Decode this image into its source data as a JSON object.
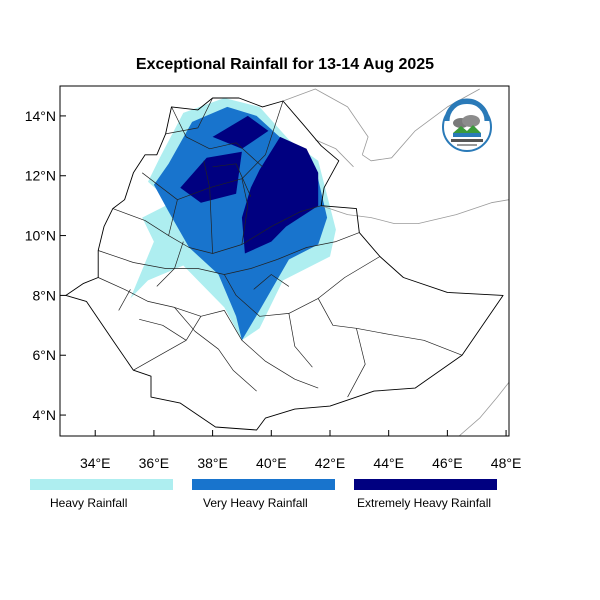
{
  "title": "Exceptional Rainfall for 13-14 Aug 2025",
  "axes": {
    "lon_ticks": [
      {
        "value": 34,
        "label": "34°E"
      },
      {
        "value": 36,
        "label": "36°E"
      },
      {
        "value": 38,
        "label": "38°E"
      },
      {
        "value": 40,
        "label": "40°E"
      },
      {
        "value": 42,
        "label": "42°E"
      },
      {
        "value": 44,
        "label": "44°E"
      },
      {
        "value": 46,
        "label": "46°E"
      },
      {
        "value": 48,
        "label": "48°E"
      }
    ],
    "lat_ticks": [
      {
        "value": 14,
        "label": "14°N"
      },
      {
        "value": 12,
        "label": "12°N"
      },
      {
        "value": 10,
        "label": "10°N"
      },
      {
        "value": 8,
        "label": "8°N"
      },
      {
        "value": 6,
        "label": "6°N"
      },
      {
        "value": 4,
        "label": "4°N"
      }
    ],
    "lon_range": [
      32.8,
      48.1
    ],
    "lat_range": [
      3.3,
      15.0
    ]
  },
  "legend": [
    {
      "label": "Heavy Rainfall",
      "color": "#aeeef0"
    },
    {
      "label": "Very Heavy Rainfall",
      "color": "#1874cd"
    },
    {
      "label": "Extremely Heavy Rainfall",
      "color": "#000080"
    }
  ],
  "logo": {
    "icon": "meteorology-institute-logo"
  },
  "rainfall_areas": [
    {
      "level": "heavy",
      "points": [
        [
          36.2,
          12.6
        ],
        [
          37.0,
          14.1
        ],
        [
          38.4,
          14.6
        ],
        [
          39.6,
          14.3
        ],
        [
          40.6,
          13.2
        ],
        [
          41.6,
          12.5
        ],
        [
          42.2,
          10.2
        ],
        [
          42.0,
          9.3
        ],
        [
          40.4,
          8.5
        ],
        [
          39.6,
          6.9
        ],
        [
          39.0,
          6.5
        ],
        [
          38.4,
          7.6
        ],
        [
          37.0,
          9.0
        ],
        [
          35.8,
          8.5
        ],
        [
          35.2,
          7.9
        ],
        [
          36.0,
          9.8
        ],
        [
          35.6,
          10.6
        ],
        [
          36.6,
          11.1
        ],
        [
          35.8,
          11.8
        ]
      ]
    },
    {
      "level": "very_heavy",
      "points": [
        [
          36.5,
          12.4
        ],
        [
          37.3,
          13.8
        ],
        [
          38.5,
          14.3
        ],
        [
          39.5,
          14.0
        ],
        [
          40.5,
          13.1
        ],
        [
          41.5,
          12.3
        ],
        [
          41.9,
          10.6
        ],
        [
          41.6,
          9.7
        ],
        [
          40.6,
          9.2
        ],
        [
          39.6,
          7.5
        ],
        [
          39.0,
          6.5
        ],
        [
          38.8,
          7.3
        ],
        [
          38.2,
          8.7
        ],
        [
          37.2,
          9.6
        ],
        [
          36.5,
          10.8
        ],
        [
          36.0,
          11.7
        ]
      ]
    },
    {
      "level": "extreme",
      "points": [
        [
          39.6,
          12.2
        ],
        [
          40.3,
          13.3
        ],
        [
          41.2,
          12.9
        ],
        [
          41.6,
          12.1
        ],
        [
          41.6,
          11.0
        ],
        [
          40.5,
          10.3
        ],
        [
          40.0,
          9.8
        ],
        [
          39.1,
          9.4
        ],
        [
          39.0,
          10.6
        ],
        [
          39.3,
          11.6
        ]
      ]
    },
    {
      "level": "extreme",
      "points": [
        [
          36.9,
          11.6
        ],
        [
          37.8,
          12.6
        ],
        [
          39.0,
          12.8
        ],
        [
          38.8,
          11.4
        ],
        [
          37.6,
          11.1
        ]
      ]
    },
    {
      "level": "extreme",
      "points": [
        [
          38.0,
          13.3
        ],
        [
          39.2,
          14.0
        ],
        [
          39.9,
          13.5
        ],
        [
          39.0,
          12.9
        ]
      ]
    }
  ],
  "boundaries": {
    "country": [
      [
        33.0,
        8.0
      ],
      [
        33.6,
        8.4
      ],
      [
        34.1,
        8.6
      ],
      [
        34.1,
        9.5
      ],
      [
        34.3,
        10.3
      ],
      [
        34.6,
        10.9
      ],
      [
        35.0,
        11.2
      ],
      [
        35.3,
        12.1
      ],
      [
        35.7,
        12.7
      ],
      [
        36.1,
        12.7
      ],
      [
        36.4,
        13.4
      ],
      [
        36.6,
        14.3
      ],
      [
        37.5,
        14.2
      ],
      [
        38.0,
        14.6
      ],
      [
        38.9,
        14.6
      ],
      [
        39.7,
        14.3
      ],
      [
        40.4,
        14.5
      ],
      [
        41.1,
        13.7
      ],
      [
        41.7,
        13.0
      ],
      [
        42.3,
        12.5
      ],
      [
        41.8,
        11.6
      ],
      [
        41.7,
        11.0
      ],
      [
        42.9,
        10.9
      ],
      [
        43.0,
        10.1
      ],
      [
        43.7,
        9.3
      ],
      [
        44.5,
        8.6
      ],
      [
        46.0,
        8.1
      ],
      [
        47.9,
        8.0
      ],
      [
        46.5,
        6.0
      ],
      [
        44.9,
        4.9
      ],
      [
        43.5,
        4.8
      ],
      [
        42.0,
        4.3
      ],
      [
        40.8,
        4.2
      ],
      [
        39.8,
        3.9
      ],
      [
        39.5,
        3.5
      ],
      [
        38.1,
        3.6
      ],
      [
        36.9,
        4.4
      ],
      [
        35.9,
        4.6
      ],
      [
        35.9,
        5.3
      ],
      [
        35.3,
        5.5
      ],
      [
        34.6,
        6.5
      ],
      [
        33.7,
        7.8
      ],
      [
        33.0,
        8.0
      ]
    ],
    "internal": [
      [
        [
          35.6,
          12.1
        ],
        [
          36.8,
          11.2
        ],
        [
          37.9,
          11.6
        ],
        [
          39.0,
          11.9
        ],
        [
          39.8,
          12.7
        ],
        [
          40.4,
          14.5
        ]
      ],
      [
        [
          36.6,
          14.3
        ],
        [
          37.1,
          13.3
        ],
        [
          37.9,
          12.9
        ],
        [
          38.8,
          13.1
        ],
        [
          39.7,
          12.3
        ]
      ],
      [
        [
          34.6,
          10.9
        ],
        [
          35.7,
          10.5
        ],
        [
          36.5,
          10.0
        ],
        [
          37.2,
          9.6
        ],
        [
          38.0,
          9.4
        ],
        [
          39.0,
          9.7
        ],
        [
          40.0,
          10.3
        ],
        [
          41.0,
          10.8
        ],
        [
          41.7,
          11.0
        ]
      ],
      [
        [
          34.1,
          9.5
        ],
        [
          35.3,
          9.1
        ],
        [
          36.4,
          8.9
        ],
        [
          37.5,
          8.9
        ],
        [
          38.4,
          8.7
        ],
        [
          39.3,
          8.9
        ],
        [
          40.2,
          9.2
        ]
      ],
      [
        [
          34.1,
          8.6
        ],
        [
          35.0,
          8.2
        ],
        [
          35.8,
          7.8
        ],
        [
          36.7,
          7.6
        ],
        [
          37.6,
          7.3
        ],
        [
          38.4,
          7.5
        ],
        [
          39.0,
          6.5
        ],
        [
          39.8,
          5.8
        ],
        [
          40.8,
          5.2
        ],
        [
          41.6,
          4.9
        ]
      ],
      [
        [
          35.3,
          5.5
        ],
        [
          36.2,
          6.0
        ],
        [
          37.1,
          6.5
        ],
        [
          37.6,
          7.3
        ]
      ],
      [
        [
          36.5,
          10.0
        ],
        [
          36.8,
          11.2
        ]
      ],
      [
        [
          38.0,
          9.4
        ],
        [
          37.9,
          11.6
        ],
        [
          37.7,
          12.5
        ]
      ],
      [
        [
          39.0,
          9.7
        ],
        [
          39.2,
          11.0
        ],
        [
          39.0,
          11.9
        ]
      ],
      [
        [
          40.2,
          9.2
        ],
        [
          41.2,
          9.6
        ],
        [
          42.2,
          9.8
        ],
        [
          43.0,
          10.1
        ]
      ],
      [
        [
          38.4,
          8.7
        ],
        [
          38.8,
          8.0
        ],
        [
          39.6,
          7.3
        ],
        [
          40.6,
          7.4
        ],
        [
          41.6,
          7.9
        ],
        [
          42.5,
          8.6
        ],
        [
          43.7,
          9.3
        ]
      ],
      [
        [
          36.7,
          7.6
        ],
        [
          37.4,
          6.8
        ],
        [
          38.2,
          6.2
        ],
        [
          38.7,
          5.5
        ],
        [
          39.5,
          4.8
        ]
      ],
      [
        [
          42.9,
          6.9
        ],
        [
          44.0,
          6.7
        ],
        [
          45.2,
          6.5
        ],
        [
          46.5,
          6.0
        ]
      ],
      [
        [
          41.6,
          7.9
        ],
        [
          42.1,
          7.0
        ],
        [
          42.9,
          6.9
        ],
        [
          43.2,
          5.7
        ],
        [
          42.6,
          4.6
        ]
      ],
      [
        [
          35.5,
          7.2
        ],
        [
          36.3,
          7.0
        ],
        [
          37.1,
          6.5
        ]
      ],
      [
        [
          34.8,
          7.5
        ],
        [
          35.2,
          8.2
        ]
      ],
      [
        [
          40.6,
          7.4
        ],
        [
          40.8,
          6.3
        ],
        [
          41.4,
          5.6
        ]
      ],
      [
        [
          36.4,
          13.4
        ],
        [
          37.5,
          13.6
        ],
        [
          38.0,
          14.6
        ]
      ],
      [
        [
          38.0,
          12.3
        ],
        [
          38.8,
          12.4
        ],
        [
          39.3,
          11.3
        ]
      ],
      [
        [
          36.1,
          8.3
        ],
        [
          36.7,
          8.9
        ],
        [
          37.0,
          9.8
        ]
      ],
      [
        [
          39.4,
          8.2
        ],
        [
          40.0,
          8.7
        ],
        [
          40.6,
          8.3
        ]
      ]
    ],
    "neighbor": [
      [
        [
          40.4,
          14.5
        ],
        [
          41.5,
          14.9
        ],
        [
          42.6,
          14.3
        ],
        [
          43.3,
          13.3
        ],
        [
          43.1,
          12.7
        ]
      ],
      [
        [
          41.7,
          11.0
        ],
        [
          42.6,
          10.7
        ],
        [
          43.4,
          10.6
        ],
        [
          44.2,
          10.4
        ],
        [
          45.0,
          10.4
        ],
        [
          46.3,
          10.7
        ],
        [
          47.5,
          11.1
        ],
        [
          48.1,
          11.2
        ]
      ],
      [
        [
          43.1,
          12.7
        ],
        [
          43.4,
          12.5
        ],
        [
          44.1,
          12.6
        ],
        [
          44.9,
          13.5
        ],
        [
          46.0,
          14.3
        ],
        [
          47.1,
          14.9
        ]
      ],
      [
        [
          41.5,
          13.2
        ],
        [
          42.2,
          12.9
        ],
        [
          42.8,
          12.3
        ]
      ],
      [
        [
          46.4,
          3.3
        ],
        [
          47.1,
          3.9
        ],
        [
          47.7,
          4.6
        ],
        [
          48.1,
          5.1
        ]
      ]
    ]
  }
}
